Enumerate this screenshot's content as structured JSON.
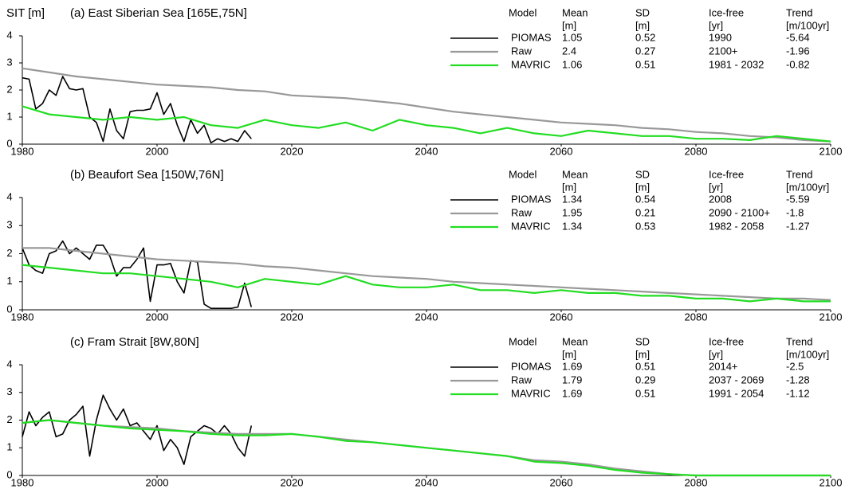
{
  "chart_data": [
    {
      "type": "line",
      "title": "(a) East Siberian Sea [165E,75N]",
      "ylabel": "SIT [m]",
      "xlim": [
        1980,
        2100
      ],
      "xticks": [
        1980,
        2000,
        2020,
        2040,
        2060,
        2080,
        2100
      ],
      "ylim": [
        0,
        4
      ],
      "yticks": [
        0,
        1,
        2,
        3,
        4
      ],
      "legend_header": [
        "Model",
        "Mean",
        "SD",
        "Ice-free",
        "Trend"
      ],
      "legend_units": [
        "[m]",
        "[m]",
        "[yr]",
        "[m/100yr]"
      ],
      "series": [
        {
          "name": "PIOMAS",
          "color": "#000000",
          "mean": 1.05,
          "sd": 0.52,
          "ice_free": "1990",
          "trend": -5.64,
          "x": [
            1980,
            1981,
            1982,
            1983,
            1984,
            1985,
            1986,
            1987,
            1988,
            1989,
            1990,
            1991,
            1992,
            1993,
            1994,
            1995,
            1996,
            1997,
            1998,
            1999,
            2000,
            2001,
            2002,
            2003,
            2004,
            2005,
            2006,
            2007,
            2008,
            2009,
            2010,
            2011,
            2012,
            2013,
            2014
          ],
          "values": [
            2.45,
            2.4,
            1.3,
            1.5,
            2.0,
            1.8,
            2.5,
            2.05,
            2.0,
            2.05,
            1.0,
            0.8,
            0.1,
            1.3,
            0.5,
            0.2,
            1.2,
            1.25,
            1.25,
            1.3,
            1.9,
            1.1,
            1.5,
            0.7,
            0.1,
            0.9,
            0.4,
            0.7,
            0.05,
            0.2,
            0.1,
            0.2,
            0.1,
            0.5,
            0.2
          ]
        },
        {
          "name": "Raw",
          "color": "#999999",
          "mean": 2.4,
          "sd": 0.27,
          "ice_free": "2100+",
          "trend": -1.96,
          "x": [
            1980,
            1984,
            1988,
            1992,
            1996,
            2000,
            2004,
            2008,
            2012,
            2016,
            2020,
            2024,
            2028,
            2032,
            2036,
            2040,
            2044,
            2048,
            2052,
            2056,
            2060,
            2064,
            2068,
            2072,
            2076,
            2080,
            2084,
            2088,
            2092,
            2096,
            2100
          ],
          "values": [
            2.8,
            2.65,
            2.5,
            2.4,
            2.3,
            2.2,
            2.15,
            2.1,
            2.0,
            1.95,
            1.8,
            1.75,
            1.7,
            1.6,
            1.5,
            1.35,
            1.2,
            1.1,
            1.0,
            0.9,
            0.8,
            0.75,
            0.7,
            0.6,
            0.55,
            0.45,
            0.4,
            0.3,
            0.25,
            0.15,
            0.1
          ]
        },
        {
          "name": "MAVRIC",
          "color": "#22dd22",
          "mean": 1.06,
          "sd": 0.51,
          "ice_free": "1981 - 2032",
          "trend": -0.82,
          "x": [
            1980,
            1984,
            1988,
            1992,
            1996,
            2000,
            2004,
            2008,
            2012,
            2016,
            2020,
            2024,
            2028,
            2032,
            2036,
            2040,
            2044,
            2048,
            2052,
            2056,
            2060,
            2064,
            2068,
            2072,
            2076,
            2080,
            2084,
            2088,
            2092,
            2096,
            2100
          ],
          "values": [
            1.4,
            1.1,
            1.0,
            0.9,
            1.0,
            0.9,
            1.0,
            0.7,
            0.6,
            0.9,
            0.7,
            0.6,
            0.8,
            0.5,
            0.9,
            0.7,
            0.6,
            0.4,
            0.6,
            0.4,
            0.3,
            0.5,
            0.4,
            0.3,
            0.3,
            0.2,
            0.2,
            0.15,
            0.3,
            0.2,
            0.1
          ]
        }
      ]
    },
    {
      "type": "line",
      "title": "(b) Beaufort Sea [150W,76N]",
      "xlim": [
        1980,
        2100
      ],
      "xticks": [
        1980,
        2000,
        2020,
        2040,
        2060,
        2080,
        2100
      ],
      "ylim": [
        0,
        4
      ],
      "yticks": [
        0,
        1,
        2,
        3,
        4
      ],
      "legend_header": [
        "Model",
        "Mean",
        "SD",
        "Ice-free",
        "Trend"
      ],
      "legend_units": [
        "[m]",
        "[m]",
        "[yr]",
        "[m/100yr]"
      ],
      "series": [
        {
          "name": "PIOMAS",
          "color": "#000000",
          "mean": 1.34,
          "sd": 0.54,
          "ice_free": "2008",
          "trend": -5.59,
          "x": [
            1980,
            1981,
            1982,
            1983,
            1984,
            1985,
            1986,
            1987,
            1988,
            1989,
            1990,
            1991,
            1992,
            1993,
            1994,
            1995,
            1996,
            1997,
            1998,
            1999,
            2000,
            2001,
            2002,
            2003,
            2004,
            2005,
            2006,
            2007,
            2008,
            2009,
            2010,
            2011,
            2012,
            2013,
            2014
          ],
          "values": [
            2.2,
            1.6,
            1.4,
            1.3,
            2.0,
            2.1,
            2.45,
            2.0,
            2.2,
            2.0,
            1.8,
            2.3,
            2.3,
            1.9,
            1.2,
            1.5,
            1.5,
            1.8,
            2.2,
            0.3,
            1.6,
            1.6,
            1.65,
            1.0,
            0.6,
            1.75,
            1.7,
            0.2,
            0.05,
            0.05,
            0.05,
            0.05,
            0.1,
            0.95,
            0.1
          ]
        },
        {
          "name": "Raw",
          "color": "#999999",
          "mean": 1.95,
          "sd": 0.21,
          "ice_free": "2090 - 2100+",
          "trend": -1.8,
          "x": [
            1980,
            1984,
            1988,
            1992,
            1996,
            2000,
            2004,
            2008,
            2012,
            2016,
            2020,
            2024,
            2028,
            2032,
            2036,
            2040,
            2044,
            2048,
            2052,
            2056,
            2060,
            2064,
            2068,
            2072,
            2076,
            2080,
            2084,
            2088,
            2092,
            2096,
            2100
          ],
          "values": [
            2.2,
            2.2,
            2.1,
            2.0,
            1.9,
            1.8,
            1.75,
            1.7,
            1.65,
            1.55,
            1.5,
            1.4,
            1.3,
            1.2,
            1.15,
            1.1,
            1.0,
            0.95,
            0.9,
            0.85,
            0.8,
            0.75,
            0.7,
            0.65,
            0.6,
            0.55,
            0.5,
            0.45,
            0.4,
            0.4,
            0.35
          ]
        },
        {
          "name": "MAVRIC",
          "color": "#22dd22",
          "mean": 1.34,
          "sd": 0.53,
          "ice_free": "1982 - 2058",
          "trend": -1.27,
          "x": [
            1980,
            1984,
            1988,
            1992,
            1996,
            2000,
            2004,
            2008,
            2012,
            2016,
            2020,
            2024,
            2028,
            2032,
            2036,
            2040,
            2044,
            2048,
            2052,
            2056,
            2060,
            2064,
            2068,
            2072,
            2076,
            2080,
            2084,
            2088,
            2092,
            2096,
            2100
          ],
          "values": [
            1.6,
            1.5,
            1.4,
            1.3,
            1.3,
            1.2,
            1.1,
            1.0,
            0.8,
            1.1,
            1.0,
            0.9,
            1.2,
            0.9,
            0.8,
            0.8,
            0.9,
            0.7,
            0.7,
            0.6,
            0.7,
            0.6,
            0.6,
            0.5,
            0.5,
            0.4,
            0.4,
            0.3,
            0.4,
            0.3,
            0.3
          ]
        }
      ]
    },
    {
      "type": "line",
      "title": "(c) Fram Strait [8W,80N]",
      "xlim": [
        1980,
        2100
      ],
      "xticks": [
        1980,
        2000,
        2020,
        2040,
        2060,
        2080,
        2100
      ],
      "ylim": [
        0,
        4
      ],
      "yticks": [
        0,
        1,
        2,
        3,
        4
      ],
      "legend_header": [
        "Model",
        "Mean",
        "SD",
        "Ice-free",
        "Trend"
      ],
      "legend_units": [
        "[m]",
        "[m]",
        "[yr]",
        "[m/100yr]"
      ],
      "series": [
        {
          "name": "PIOMAS",
          "color": "#000000",
          "mean": 1.69,
          "sd": 0.51,
          "ice_free": "2014+",
          "trend": -2.5,
          "x": [
            1980,
            1981,
            1982,
            1983,
            1984,
            1985,
            1986,
            1987,
            1988,
            1989,
            1990,
            1991,
            1992,
            1993,
            1994,
            1995,
            1996,
            1997,
            1998,
            1999,
            2000,
            2001,
            2002,
            2003,
            2004,
            2005,
            2006,
            2007,
            2008,
            2009,
            2010,
            2011,
            2012,
            2013,
            2014
          ],
          "values": [
            1.4,
            2.3,
            1.8,
            2.1,
            2.3,
            1.4,
            1.5,
            2.0,
            2.2,
            2.5,
            0.7,
            2.0,
            2.9,
            2.4,
            2.0,
            2.4,
            1.8,
            1.9,
            1.6,
            1.3,
            1.8,
            0.9,
            1.3,
            1.0,
            0.4,
            1.4,
            1.6,
            1.8,
            1.7,
            1.5,
            1.8,
            1.5,
            1.0,
            0.7,
            1.8
          ]
        },
        {
          "name": "Raw",
          "color": "#999999",
          "mean": 1.79,
          "sd": 0.29,
          "ice_free": "2037 - 2069",
          "trend": -1.28,
          "x": [
            1980,
            1984,
            1988,
            1992,
            1996,
            2000,
            2004,
            2008,
            2012,
            2016,
            2020,
            2024,
            2028,
            2032,
            2036,
            2040,
            2044,
            2048,
            2052,
            2056,
            2060,
            2064,
            2068,
            2072,
            2076,
            2080,
            2084,
            2088,
            2092,
            2096,
            2100
          ],
          "values": [
            1.9,
            2.0,
            1.9,
            1.8,
            1.75,
            1.7,
            1.6,
            1.55,
            1.5,
            1.5,
            1.5,
            1.4,
            1.3,
            1.2,
            1.1,
            1.0,
            0.9,
            0.8,
            0.7,
            0.55,
            0.5,
            0.4,
            0.25,
            0.15,
            0.05,
            0,
            0,
            0,
            0,
            0,
            0
          ]
        },
        {
          "name": "MAVRIC",
          "color": "#22dd22",
          "mean": 1.69,
          "sd": 0.51,
          "ice_free": "1991 - 2054",
          "trend": -1.12,
          "x": [
            1980,
            1984,
            1988,
            1992,
            1996,
            2000,
            2004,
            2008,
            2012,
            2016,
            2020,
            2024,
            2028,
            2032,
            2036,
            2040,
            2044,
            2048,
            2052,
            2056,
            2060,
            2064,
            2068,
            2072,
            2076,
            2080,
            2084,
            2088,
            2092,
            2096,
            2100
          ],
          "values": [
            1.9,
            2.0,
            1.9,
            1.8,
            1.7,
            1.65,
            1.6,
            1.5,
            1.45,
            1.45,
            1.5,
            1.4,
            1.25,
            1.2,
            1.1,
            1.0,
            0.9,
            0.8,
            0.7,
            0.5,
            0.45,
            0.35,
            0.2,
            0.1,
            0.05,
            0,
            0,
            0,
            0,
            0,
            0
          ]
        }
      ]
    }
  ]
}
